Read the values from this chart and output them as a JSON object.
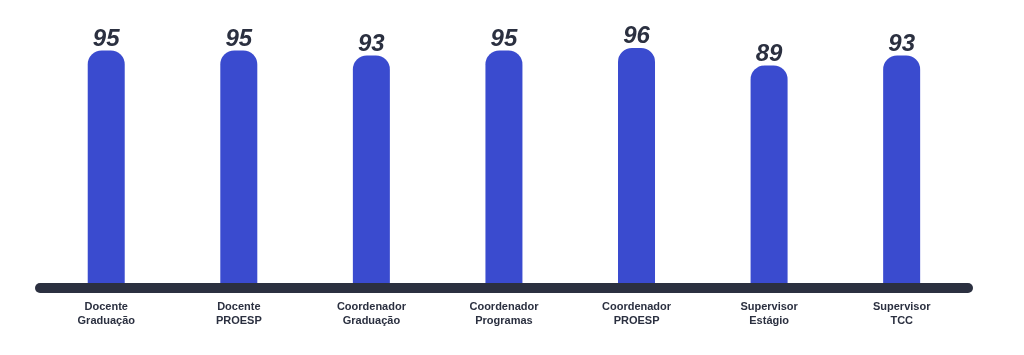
{
  "chart_data": {
    "type": "bar",
    "categories": [
      "Docente\nGraduação",
      "Docente\nPROESP",
      "Coordenador\nGraduação",
      "Coordenador\nProgramas",
      "Coordenador\nPROESP",
      "Supervisor\nEstágio",
      "Supervisor\nTCC"
    ],
    "values": [
      95,
      95,
      93,
      95,
      96,
      89,
      93
    ],
    "color": "#3a4bcf",
    "data_labels": true
  }
}
